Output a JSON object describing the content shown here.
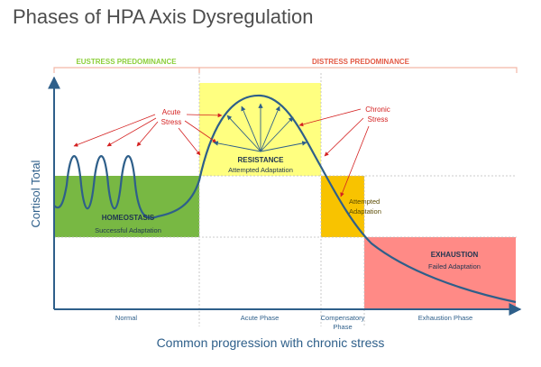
{
  "title": "Phases of HPA Axis Dysregulation",
  "brackets": {
    "eustress": "EUSTRESS PREDOMINANCE",
    "distress": "DISTRESS PREDOMINANCE"
  },
  "axes": {
    "y_label": "Cortisol Total",
    "x_label": "Common progression with chronic stress"
  },
  "phases": {
    "normal": "Normal",
    "acute": "Acute Phase",
    "compensatory_line1": "Compensatory",
    "compensatory_line2": "Phase",
    "exhaustion": "Exhaustion Phase"
  },
  "boxes": {
    "homeostasis": {
      "title": "HOMEOSTASIS",
      "subtitle": "Successful Adaptation"
    },
    "resistance": {
      "title": "RESISTANCE",
      "subtitle": "Attempted Adaptation"
    },
    "compensatory": {
      "line1": "Attempted",
      "line2": "Adaptation"
    },
    "exhaustion": {
      "title": "EXHAUSTION",
      "subtitle": "Failed Adaptation"
    }
  },
  "labels": {
    "acute_stress_line1": "Acute",
    "acute_stress_line2": "Stress",
    "chronic_stress_line1": "Chronic",
    "chronic_stress_line2": "Stress"
  },
  "colors": {
    "homeostasis": "#78b843",
    "resistance": "#ffff80",
    "compensatory": "#f8c300",
    "exhaustion": "#ff8a86",
    "curve": "#2e5f8a",
    "bracket": "#f3b8a8",
    "stress_label": "#d42020"
  }
}
